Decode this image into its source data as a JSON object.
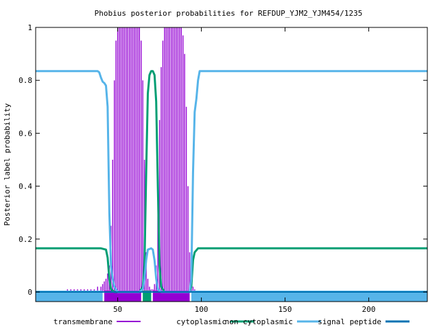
{
  "chart_data": {
    "type": "line",
    "title": "Phobius posterior probabilities for REFDUP_YJM2_YJM454/1235",
    "xlabel": "",
    "ylabel": "Posterior label probability",
    "xlim": [
      1,
      235
    ],
    "ylim": [
      0,
      1
    ],
    "x_ticks": [
      50,
      100,
      150,
      200
    ],
    "y_ticks": [
      0,
      0.2,
      0.4,
      0.6,
      0.8,
      1
    ],
    "grid": false,
    "legend": "bottom",
    "series": [
      {
        "name": "transmembrane",
        "color": "#9400d3",
        "style": "impulses",
        "points": [
          [
            20,
            0.01
          ],
          [
            22,
            0.01
          ],
          [
            24,
            0.01
          ],
          [
            26,
            0.01
          ],
          [
            28,
            0.01
          ],
          [
            30,
            0.01
          ],
          [
            32,
            0.01
          ],
          [
            34,
            0.01
          ],
          [
            36,
            0.01
          ],
          [
            38,
            0.02
          ],
          [
            40,
            0.02
          ],
          [
            41,
            0.03
          ],
          [
            42,
            0.04
          ],
          [
            43,
            0.05
          ],
          [
            44,
            0.07
          ],
          [
            45,
            0.1
          ],
          [
            46,
            0.25
          ],
          [
            47,
            0.5
          ],
          [
            48,
            0.8
          ],
          [
            49,
            0.95
          ],
          [
            50,
            1.0
          ],
          [
            51,
            1.0
          ],
          [
            52,
            1.0
          ],
          [
            53,
            1.0
          ],
          [
            54,
            1.0
          ],
          [
            55,
            1.0
          ],
          [
            56,
            1.0
          ],
          [
            57,
            1.0
          ],
          [
            58,
            1.0
          ],
          [
            59,
            1.0
          ],
          [
            60,
            1.0
          ],
          [
            61,
            1.0
          ],
          [
            62,
            1.0
          ],
          [
            63,
            1.0
          ],
          [
            64,
            0.95
          ],
          [
            65,
            0.8
          ],
          [
            66,
            0.5
          ],
          [
            67,
            0.15
          ],
          [
            68,
            0.05
          ],
          [
            69,
            0.02
          ],
          [
            70,
            0.01
          ],
          [
            71,
            0.01
          ],
          [
            72,
            0.03
          ],
          [
            73,
            0.1
          ],
          [
            74,
            0.35
          ],
          [
            75,
            0.65
          ],
          [
            76,
            0.85
          ],
          [
            77,
            0.95
          ],
          [
            78,
            1.0
          ],
          [
            79,
            1.0
          ],
          [
            80,
            1.0
          ],
          [
            81,
            1.0
          ],
          [
            82,
            1.0
          ],
          [
            83,
            1.0
          ],
          [
            84,
            1.0
          ],
          [
            85,
            1.0
          ],
          [
            86,
            1.0
          ],
          [
            87,
            1.0
          ],
          [
            88,
            1.0
          ],
          [
            89,
            0.97
          ],
          [
            90,
            0.9
          ],
          [
            91,
            0.7
          ],
          [
            92,
            0.4
          ],
          [
            93,
            0.15
          ],
          [
            94,
            0.06
          ],
          [
            95,
            0.02
          ],
          [
            96,
            0.01
          ]
        ]
      },
      {
        "name": "cytoplasmic",
        "color": "#009e73",
        "style": "lines",
        "points": [
          [
            1,
            0.165
          ],
          [
            40,
            0.165
          ],
          [
            43,
            0.16
          ],
          [
            44,
            0.13
          ],
          [
            45,
            0.05
          ],
          [
            46,
            0.01
          ],
          [
            48,
            0.0
          ],
          [
            63,
            0.0
          ],
          [
            65,
            0.02
          ],
          [
            66,
            0.1
          ],
          [
            67,
            0.45
          ],
          [
            68,
            0.75
          ],
          [
            69,
            0.82
          ],
          [
            70,
            0.835
          ],
          [
            71,
            0.835
          ],
          [
            72,
            0.82
          ],
          [
            73,
            0.72
          ],
          [
            74,
            0.4
          ],
          [
            75,
            0.1
          ],
          [
            76,
            0.02
          ],
          [
            78,
            0.0
          ],
          [
            93,
            0.0
          ],
          [
            94,
            0.02
          ],
          [
            95,
            0.12
          ],
          [
            96,
            0.15
          ],
          [
            98,
            0.165
          ],
          [
            235,
            0.165
          ]
        ]
      },
      {
        "name": "non cytoplasmic",
        "color": "#56b4e9",
        "style": "lines",
        "points": [
          [
            1,
            0.835
          ],
          [
            38,
            0.835
          ],
          [
            39,
            0.83
          ],
          [
            40,
            0.81
          ],
          [
            41,
            0.795
          ],
          [
            42,
            0.79
          ],
          [
            43,
            0.78
          ],
          [
            44,
            0.7
          ],
          [
            45,
            0.3
          ],
          [
            46,
            0.1
          ],
          [
            47,
            0.05
          ],
          [
            48,
            0.02
          ],
          [
            50,
            0.0
          ],
          [
            63,
            0.0
          ],
          [
            65,
            0.01
          ],
          [
            66,
            0.05
          ],
          [
            67,
            0.12
          ],
          [
            68,
            0.16
          ],
          [
            70,
            0.165
          ],
          [
            71,
            0.16
          ],
          [
            72,
            0.12
          ],
          [
            73,
            0.05
          ],
          [
            74,
            0.01
          ],
          [
            76,
            0.0
          ],
          [
            93,
            0.0
          ],
          [
            94,
            0.05
          ],
          [
            95,
            0.45
          ],
          [
            96,
            0.68
          ],
          [
            97,
            0.73
          ],
          [
            98,
            0.8
          ],
          [
            99,
            0.835
          ],
          [
            235,
            0.835
          ]
        ]
      },
      {
        "name": "signal peptide",
        "color": "#0072b2",
        "style": "lines",
        "points": [
          [
            1,
            0.0
          ],
          [
            235,
            0.0
          ]
        ]
      }
    ],
    "topology_bar": [
      {
        "from": 1,
        "to": 41,
        "color": "#56b4e9"
      },
      {
        "from": 42,
        "to": 64,
        "color": "#9400d3"
      },
      {
        "from": 65,
        "to": 70,
        "color": "#009e73"
      },
      {
        "from": 71,
        "to": 93,
        "color": "#9400d3"
      },
      {
        "from": 94,
        "to": 235,
        "color": "#56b4e9"
      }
    ]
  }
}
